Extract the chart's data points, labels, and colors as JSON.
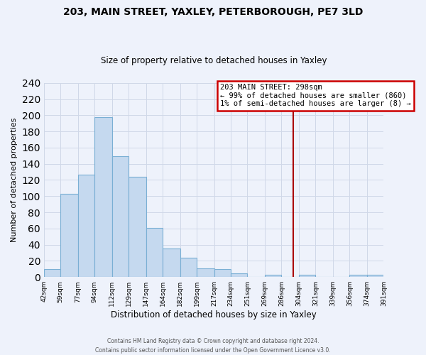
{
  "title": "203, MAIN STREET, YAXLEY, PETERBOROUGH, PE7 3LD",
  "subtitle": "Size of property relative to detached houses in Yaxley",
  "xlabel": "Distribution of detached houses by size in Yaxley",
  "ylabel": "Number of detached properties",
  "bar_color": "#c5d9ef",
  "bar_edge_color": "#7aafd4",
  "background_color": "#eef2fb",
  "plot_bg_color": "#eef2fb",
  "grid_color": "#d0d8e8",
  "bin_edges": [
    42,
    59,
    77,
    94,
    112,
    129,
    147,
    164,
    182,
    199,
    217,
    234,
    251,
    269,
    286,
    304,
    321,
    339,
    356,
    374,
    391
  ],
  "bin_labels": [
    "42sqm",
    "59sqm",
    "77sqm",
    "94sqm",
    "112sqm",
    "129sqm",
    "147sqm",
    "164sqm",
    "182sqm",
    "199sqm",
    "217sqm",
    "234sqm",
    "251sqm",
    "269sqm",
    "286sqm",
    "304sqm",
    "321sqm",
    "339sqm",
    "356sqm",
    "374sqm",
    "391sqm"
  ],
  "counts": [
    10,
    103,
    127,
    198,
    149,
    124,
    61,
    35,
    24,
    11,
    10,
    5,
    0,
    3,
    0,
    3,
    0,
    0,
    3,
    3
  ],
  "vline_x": 298,
  "vline_color": "#aa0000",
  "ylim": [
    0,
    240
  ],
  "yticks": [
    0,
    20,
    40,
    60,
    80,
    100,
    120,
    140,
    160,
    180,
    200,
    220,
    240
  ],
  "annotation_title": "203 MAIN STREET: 298sqm",
  "annotation_line1": "← 99% of detached houses are smaller (860)",
  "annotation_line2": "1% of semi-detached houses are larger (8) →",
  "annotation_box_color": "#ffffff",
  "annotation_border_color": "#cc0000",
  "footer1": "Contains HM Land Registry data © Crown copyright and database right 2024.",
  "footer2": "Contains public sector information licensed under the Open Government Licence v3.0."
}
